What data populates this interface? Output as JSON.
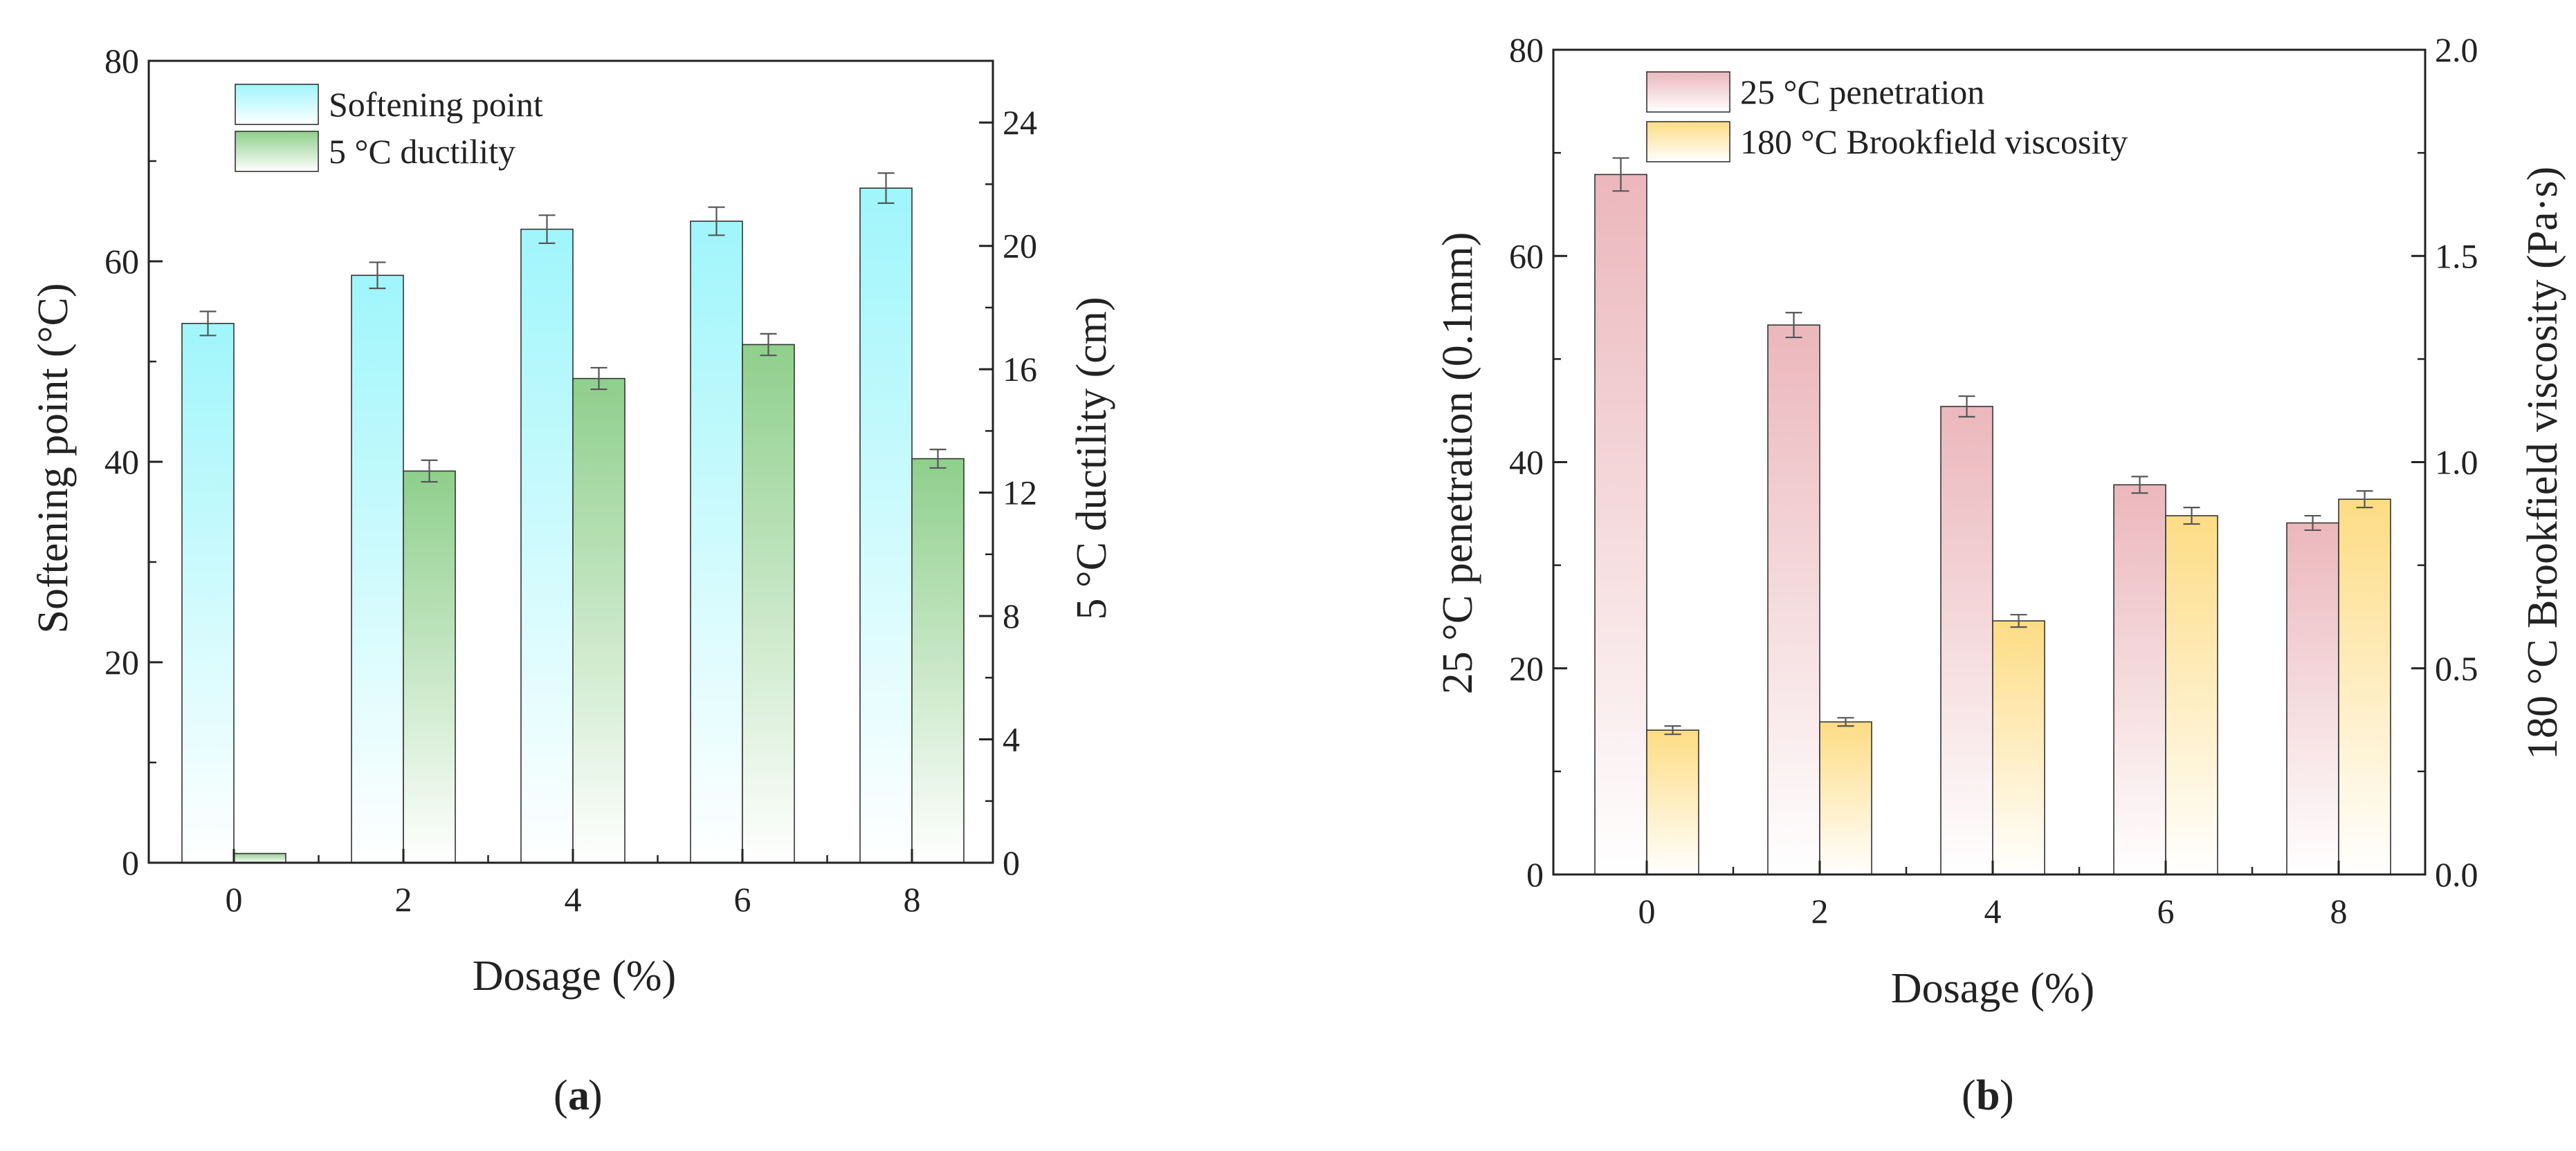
{
  "colors": {
    "softening": "#9ff6fb",
    "ductility": "#8fcf8c",
    "penetration": "#ebb7bc",
    "viscosity": "#fddc84",
    "axis": "#222222",
    "error_bar": "#555555"
  },
  "chart_data": [
    {
      "type": "bar",
      "panel_label": "a",
      "categories": [
        "0",
        "2",
        "4",
        "6",
        "8"
      ],
      "xlabel": "Dosage (%)",
      "ylabel_left": "Softening point (°C)",
      "ylabel_right": "5 °C ductility (cm)",
      "ylim_left": [
        0,
        80
      ],
      "ylim_right": [
        0,
        26
      ],
      "yticks_left": [
        0,
        20,
        40,
        60,
        80
      ],
      "yticks_right": [
        0,
        4,
        8,
        12,
        16,
        20,
        24
      ],
      "legend_position": "top-left",
      "series": [
        {
          "name": "Softening point",
          "axis": "left",
          "color_key": "softening",
          "values": [
            53.8,
            58.6,
            63.2,
            64.0,
            67.3
          ],
          "errors": [
            1.2,
            1.3,
            1.4,
            1.4,
            1.5
          ]
        },
        {
          "name": "5 °C ductility",
          "axis": "right",
          "color_key": "ductility",
          "values": [
            0.3,
            12.7,
            15.7,
            16.8,
            13.1
          ],
          "errors": [
            0.0,
            0.35,
            0.35,
            0.35,
            0.3
          ]
        }
      ]
    },
    {
      "type": "bar",
      "panel_label": "b",
      "categories": [
        "0",
        "2",
        "4",
        "6",
        "8"
      ],
      "xlabel": "Dosage (%)",
      "ylabel_left": "25 °C penetration (0.1mm)",
      "ylabel_right": "180 °C Brookfield viscosity (Pa·s)",
      "ylim_left": [
        0,
        80
      ],
      "ylim_right": [
        0,
        2.0
      ],
      "yticks_left": [
        0,
        20,
        40,
        60,
        80
      ],
      "yticks_right": [
        "0.0",
        "0.5",
        "1.0",
        "1.5",
        "2.0"
      ],
      "legend_position": "top-left",
      "series": [
        {
          "name": "25 °C penetration",
          "axis": "left",
          "color_key": "penetration",
          "values": [
            67.9,
            53.3,
            45.4,
            37.8,
            34.1
          ],
          "errors": [
            1.6,
            1.2,
            1.0,
            0.8,
            0.7
          ]
        },
        {
          "name": "180 °C Brookfield viscosity",
          "axis": "right",
          "color_key": "viscosity",
          "values": [
            0.35,
            0.37,
            0.615,
            0.87,
            0.91
          ],
          "errors": [
            0.01,
            0.01,
            0.015,
            0.02,
            0.02
          ]
        }
      ]
    }
  ]
}
